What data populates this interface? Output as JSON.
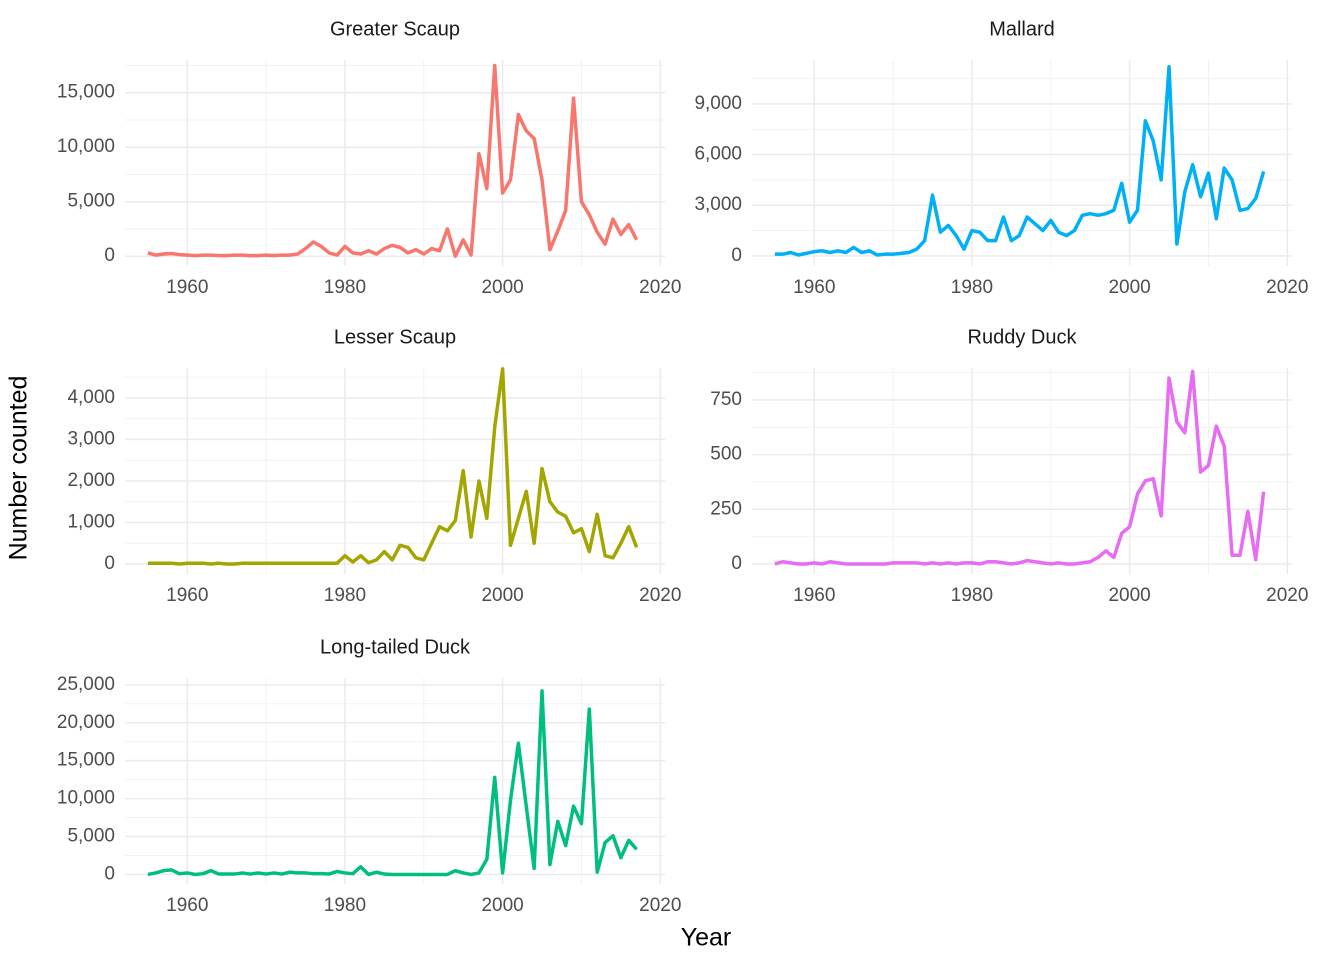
{
  "axis_labels": {
    "x": "Year",
    "y": "Number counted"
  },
  "chart_data": [
    {
      "type": "line",
      "title": "Greater Scaup",
      "color": "#F8766D",
      "grid": true,
      "x": [
        1955,
        1956,
        1957,
        1958,
        1959,
        1960,
        1961,
        1962,
        1963,
        1964,
        1965,
        1966,
        1967,
        1968,
        1969,
        1970,
        1971,
        1972,
        1973,
        1974,
        1975,
        1976,
        1977,
        1978,
        1979,
        1980,
        1981,
        1982,
        1983,
        1984,
        1985,
        1986,
        1987,
        1988,
        1989,
        1990,
        1991,
        1992,
        1993,
        1994,
        1995,
        1996,
        1997,
        1998,
        1999,
        2000,
        2001,
        2002,
        2003,
        2004,
        2005,
        2006,
        2007,
        2008,
        2009,
        2010,
        2011,
        2012,
        2013,
        2014,
        2015,
        2016,
        2017
      ],
      "values": [
        300,
        100,
        200,
        250,
        150,
        100,
        50,
        100,
        100,
        50,
        50,
        100,
        100,
        50,
        50,
        100,
        50,
        100,
        100,
        200,
        700,
        1300,
        900,
        300,
        100,
        900,
        300,
        200,
        500,
        200,
        700,
        1000,
        800,
        300,
        600,
        200,
        700,
        500,
        2500,
        0,
        1500,
        100,
        9400,
        6200,
        17500,
        5800,
        7000,
        13000,
        11500,
        10800,
        7000,
        600,
        2300,
        4200,
        14500,
        5000,
        3800,
        2200,
        1100,
        3400,
        2000,
        2900,
        1500
      ],
      "xlim": [
        1952.1,
        2020.6
      ],
      "xticks": [
        1960,
        1980,
        2000,
        2020
      ],
      "ylim": [
        -900,
        18000
      ],
      "yticks": [
        0,
        {
          "value": 5000,
          "label": "5,000"
        },
        {
          "value": 10000,
          "label": "10,000"
        },
        {
          "value": 15000,
          "label": "15,000"
        }
      ]
    },
    {
      "type": "line",
      "title": "Mallard",
      "color": "#00B0F6",
      "grid": true,
      "x": [
        1955,
        1956,
        1957,
        1958,
        1959,
        1960,
        1961,
        1962,
        1963,
        1964,
        1965,
        1966,
        1967,
        1968,
        1969,
        1970,
        1971,
        1972,
        1973,
        1974,
        1975,
        1976,
        1977,
        1978,
        1979,
        1980,
        1981,
        1982,
        1983,
        1984,
        1985,
        1986,
        1987,
        1988,
        1989,
        1990,
        1991,
        1992,
        1993,
        1994,
        1995,
        1996,
        1997,
        1998,
        1999,
        2000,
        2001,
        2002,
        2003,
        2004,
        2005,
        2006,
        2007,
        2008,
        2009,
        2010,
        2011,
        2012,
        2013,
        2014,
        2015,
        2016,
        2017
      ],
      "values": [
        100,
        100,
        200,
        50,
        150,
        250,
        300,
        200,
        300,
        200,
        500,
        200,
        300,
        50,
        100,
        100,
        150,
        200,
        400,
        900,
        3600,
        1400,
        1800,
        1200,
        400,
        1500,
        1400,
        900,
        900,
        2300,
        900,
        1200,
        2300,
        1900,
        1500,
        2100,
        1400,
        1200,
        1500,
        2400,
        2500,
        2400,
        2500,
        2700,
        4300,
        2000,
        2700,
        8000,
        6800,
        4500,
        11200,
        700,
        3800,
        5400,
        3500,
        4900,
        2200,
        5200,
        4500,
        2700,
        2800,
        3400,
        5000
      ],
      "xlim": [
        1952.1,
        2020.6
      ],
      "xticks": [
        1960,
        1980,
        2000,
        2020
      ],
      "ylim": [
        -600,
        11600
      ],
      "yticks": [
        0,
        {
          "value": 3000,
          "label": "3,000"
        },
        {
          "value": 6000,
          "label": "6,000"
        },
        {
          "value": 9000,
          "label": "9,000"
        }
      ]
    },
    {
      "type": "line",
      "title": "Lesser Scaup",
      "color": "#A3A500",
      "grid": true,
      "x": [
        1955,
        1956,
        1957,
        1958,
        1959,
        1960,
        1961,
        1962,
        1963,
        1964,
        1965,
        1966,
        1967,
        1968,
        1969,
        1970,
        1971,
        1972,
        1973,
        1974,
        1975,
        1976,
        1977,
        1978,
        1979,
        1980,
        1981,
        1982,
        1983,
        1984,
        1985,
        1986,
        1987,
        1988,
        1989,
        1990,
        1991,
        1992,
        1993,
        1994,
        1995,
        1996,
        1997,
        1998,
        1999,
        2000,
        2001,
        2002,
        2003,
        2004,
        2005,
        2006,
        2007,
        2008,
        2009,
        2010,
        2011,
        2012,
        2013,
        2014,
        2015,
        2016,
        2017
      ],
      "values": [
        20,
        20,
        20,
        20,
        0,
        20,
        20,
        20,
        0,
        20,
        0,
        0,
        20,
        20,
        20,
        20,
        20,
        20,
        20,
        20,
        20,
        20,
        20,
        20,
        20,
        200,
        50,
        200,
        30,
        100,
        300,
        100,
        450,
        400,
        150,
        100,
        500,
        900,
        800,
        1050,
        2250,
        650,
        2000,
        1100,
        3300,
        4700,
        450,
        1100,
        1750,
        500,
        2300,
        1500,
        1250,
        1150,
        750,
        850,
        300,
        1200,
        200,
        150,
        500,
        900,
        400
      ],
      "xlim": [
        1952.1,
        2020.6
      ],
      "xticks": [
        1960,
        1980,
        2000,
        2020
      ],
      "ylim": [
        -240,
        4720
      ],
      "yticks": [
        0,
        {
          "value": 1000,
          "label": "1,000"
        },
        {
          "value": 2000,
          "label": "2,000"
        },
        {
          "value": 3000,
          "label": "3,000"
        },
        {
          "value": 4000,
          "label": "4,000"
        }
      ]
    },
    {
      "type": "line",
      "title": "Ruddy Duck",
      "color": "#E76BF3",
      "grid": true,
      "x": [
        1955,
        1956,
        1957,
        1958,
        1959,
        1960,
        1961,
        1962,
        1963,
        1964,
        1965,
        1966,
        1967,
        1968,
        1969,
        1970,
        1971,
        1972,
        1973,
        1974,
        1975,
        1976,
        1977,
        1978,
        1979,
        1980,
        1981,
        1982,
        1983,
        1984,
        1985,
        1986,
        1987,
        1988,
        1989,
        1990,
        1991,
        1992,
        1993,
        1994,
        1995,
        1996,
        1997,
        1998,
        1999,
        2000,
        2001,
        2002,
        2003,
        2004,
        2005,
        2006,
        2007,
        2008,
        2009,
        2010,
        2011,
        2012,
        2013,
        2014,
        2015,
        2016,
        2017
      ],
      "values": [
        0,
        10,
        5,
        0,
        0,
        5,
        0,
        10,
        5,
        0,
        0,
        0,
        0,
        0,
        0,
        5,
        5,
        5,
        5,
        0,
        5,
        0,
        5,
        0,
        5,
        5,
        0,
        10,
        10,
        5,
        0,
        5,
        15,
        10,
        5,
        0,
        5,
        0,
        0,
        5,
        10,
        30,
        60,
        30,
        140,
        170,
        320,
        380,
        390,
        220,
        850,
        650,
        600,
        880,
        420,
        450,
        630,
        540,
        40,
        40,
        240,
        20,
        330
      ],
      "xlim": [
        1952.1,
        2020.6
      ],
      "xticks": [
        1960,
        1980,
        2000,
        2020
      ],
      "ylim": [
        -46,
        896
      ],
      "yticks": [
        0,
        250,
        500,
        750
      ]
    },
    {
      "type": "line",
      "title": "Long-tailed Duck",
      "color": "#00BF7D",
      "grid": true,
      "x": [
        1955,
        1956,
        1957,
        1958,
        1959,
        1960,
        1961,
        1962,
        1963,
        1964,
        1965,
        1966,
        1967,
        1968,
        1969,
        1970,
        1971,
        1972,
        1973,
        1974,
        1975,
        1976,
        1977,
        1978,
        1979,
        1980,
        1981,
        1982,
        1983,
        1984,
        1985,
        1986,
        1987,
        1988,
        1989,
        1990,
        1991,
        1992,
        1993,
        1994,
        1995,
        1996,
        1997,
        1998,
        1999,
        2000,
        2001,
        2002,
        2003,
        2004,
        2005,
        2006,
        2007,
        2008,
        2009,
        2010,
        2011,
        2012,
        2013,
        2014,
        2015,
        2016,
        2017
      ],
      "values": [
        0,
        200,
        500,
        600,
        100,
        200,
        0,
        100,
        500,
        50,
        50,
        50,
        200,
        50,
        200,
        50,
        200,
        50,
        300,
        200,
        200,
        100,
        100,
        50,
        400,
        200,
        100,
        1000,
        0,
        300,
        50,
        0,
        0,
        0,
        0,
        0,
        0,
        0,
        0,
        500,
        200,
        0,
        200,
        2000,
        12800,
        200,
        9800,
        17300,
        9000,
        800,
        24200,
        1300,
        7000,
        3800,
        9000,
        6700,
        21800,
        300,
        4200,
        5100,
        2200,
        4500,
        3300
      ],
      "xlim": [
        1952.1,
        2020.6
      ],
      "xticks": [
        1960,
        1980,
        2000,
        2020
      ],
      "ylim": [
        -1260,
        25900
      ],
      "yticks": [
        0,
        {
          "value": 5000,
          "label": "5,000"
        },
        {
          "value": 10000,
          "label": "10,000"
        },
        {
          "value": 15000,
          "label": "15,000"
        },
        {
          "value": 20000,
          "label": "20,000"
        },
        {
          "value": 25000,
          "label": "25,000"
        }
      ]
    }
  ]
}
